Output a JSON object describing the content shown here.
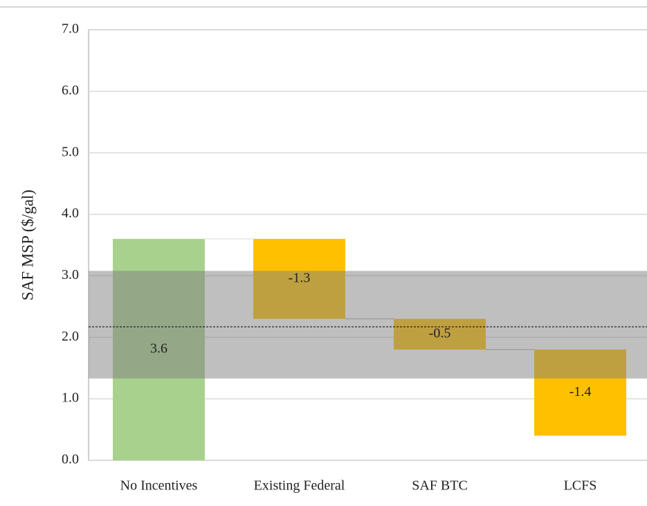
{
  "chart_data": {
    "type": "waterfall",
    "y_label": "SAF MSP ($/gal)",
    "categories": [
      "No Incentives",
      "Existing Federal",
      "SAF BTC",
      "LCFS"
    ],
    "values": [
      3.6,
      -1.3,
      -0.5,
      -1.4
    ],
    "colors": [
      "#a9d18e",
      "#ffc000",
      "#ffc000",
      "#ffc000"
    ],
    "ylim": [
      0,
      7
    ],
    "yticks": [
      {
        "value": 0,
        "label": "0.0"
      },
      {
        "value": 1,
        "label": "1.0"
      },
      {
        "value": 2,
        "label": "2.0"
      },
      {
        "value": 3,
        "label": "3.0"
      },
      {
        "value": 4,
        "label": "4.0"
      },
      {
        "value": 5,
        "label": "5.0"
      },
      {
        "value": 6,
        "label": "6.0"
      },
      {
        "value": 7,
        "label": "7.0"
      }
    ],
    "band": [
      1.33,
      3.08
    ],
    "band_color": "#808080",
    "reference_line": 2.17,
    "grid": true
  }
}
